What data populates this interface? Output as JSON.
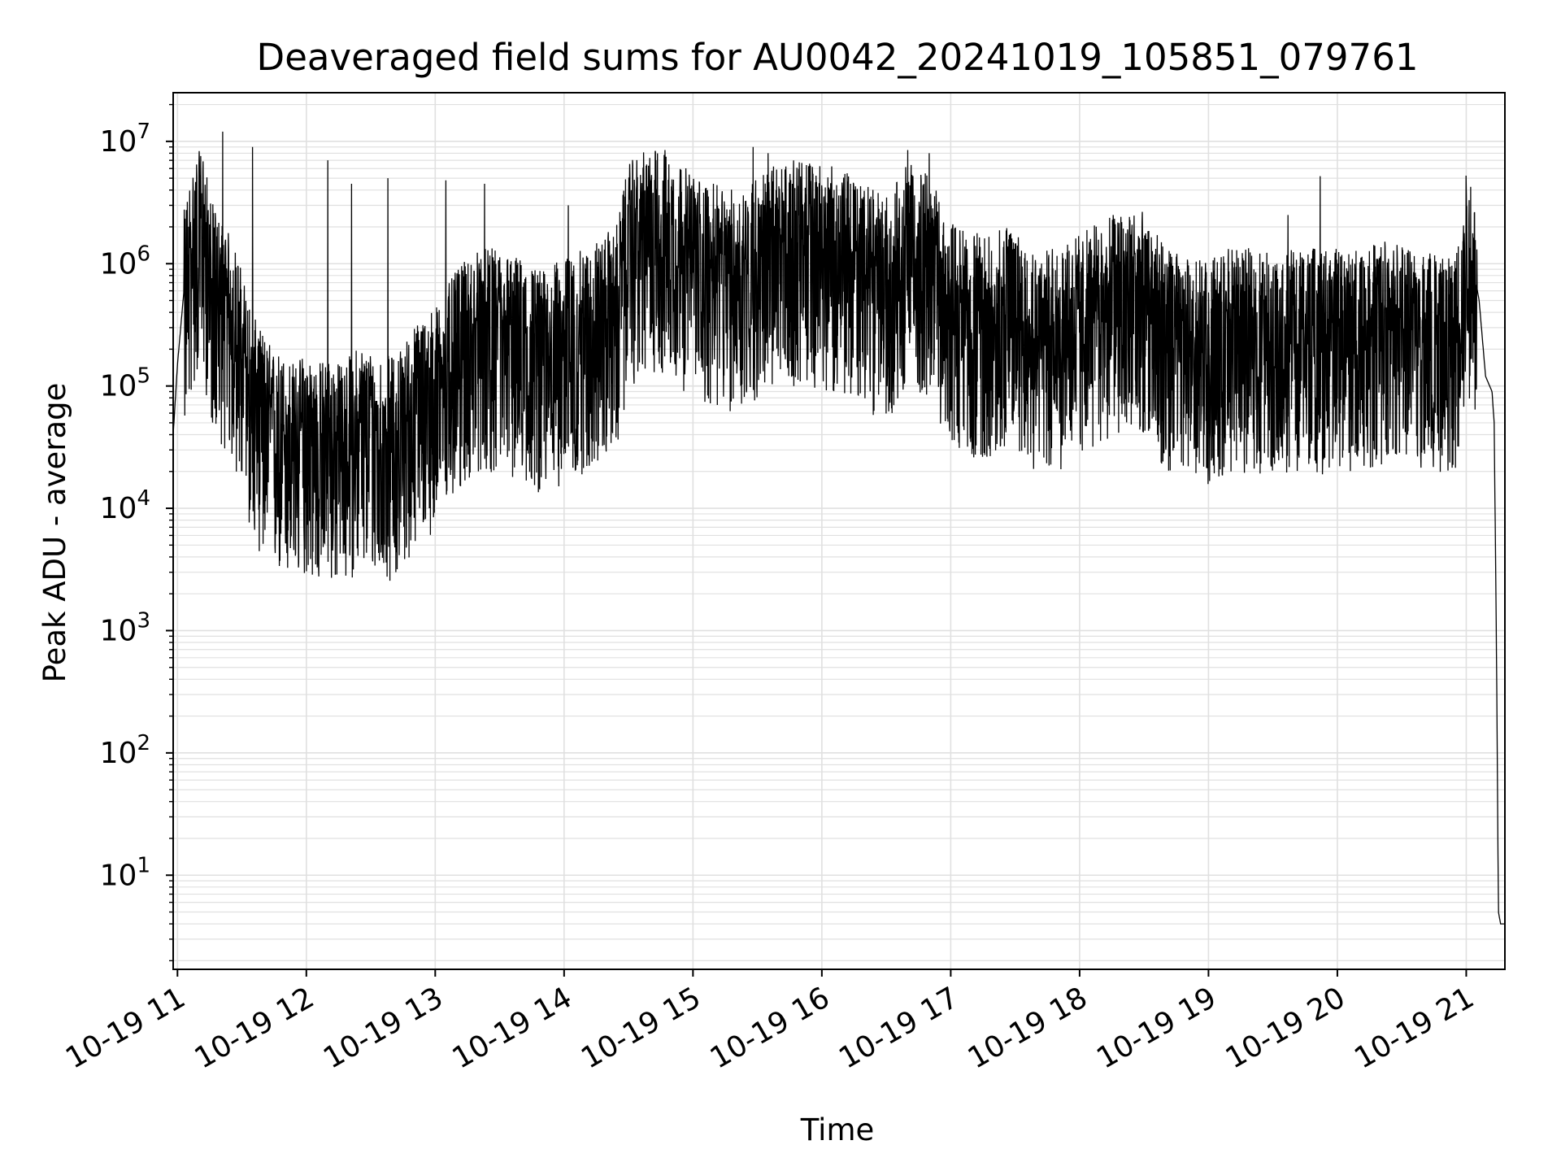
{
  "chart_data": {
    "type": "line",
    "title": "Deaveraged field sums for AU0042_20241019_105851_079761",
    "xlabel": "Time",
    "ylabel": "Peak ADU - average",
    "yscale": "log",
    "ylim": [
      1.7,
      25000000
    ],
    "xlim": [
      "2024-10-19 10:58",
      "2024-10-19 21:18"
    ],
    "grid": true,
    "line_color": "#000000",
    "grid_color": "#e0e0e0",
    "x_ticks": [
      "10-19 11",
      "10-19 12",
      "10-19 13",
      "10-19 14",
      "10-19 15",
      "10-19 16",
      "10-19 17",
      "10-19 18",
      "10-19 19",
      "10-19 20",
      "10-19 21"
    ],
    "x_tick_values": [
      "2024-10-19 11:00",
      "2024-10-19 12:00",
      "2024-10-19 13:00",
      "2024-10-19 14:00",
      "2024-10-19 15:00",
      "2024-10-19 16:00",
      "2024-10-19 17:00",
      "2024-10-19 18:00",
      "2024-10-19 19:00",
      "2024-10-19 20:00",
      "2024-10-19 21:00"
    ],
    "y_ticks": [
      {
        "base": "10",
        "exp": "1",
        "value": 10
      },
      {
        "base": "10",
        "exp": "2",
        "value": 100
      },
      {
        "base": "10",
        "exp": "3",
        "value": 1000
      },
      {
        "base": "10",
        "exp": "4",
        "value": 10000
      },
      {
        "base": "10",
        "exp": "5",
        "value": 100000
      },
      {
        "base": "10",
        "exp": "6",
        "value": 1000000
      },
      {
        "base": "10",
        "exp": "7",
        "value": 10000000
      }
    ],
    "series": [
      {
        "x": [
          "2024-10-19 10:58",
          "2024-10-19 11:00",
          "2024-10-19 11:03",
          "2024-10-19 11:06",
          "2024-10-19 11:09",
          "2024-10-19 11:12",
          "2024-10-19 11:15",
          "2024-10-19 11:18",
          "2024-10-19 11:21",
          "2024-10-19 11:24",
          "2024-10-19 11:27",
          "2024-10-19 11:30",
          "2024-10-19 11:33",
          "2024-10-19 11:36",
          "2024-10-19 11:40",
          "2024-10-19 11:45",
          "2024-10-19 11:50",
          "2024-10-19 11:55",
          "2024-10-19 12:00",
          "2024-10-19 12:05",
          "2024-10-19 12:10",
          "2024-10-19 12:15",
          "2024-10-19 12:20",
          "2024-10-19 12:25",
          "2024-10-19 12:30",
          "2024-10-19 12:35",
          "2024-10-19 12:40",
          "2024-10-19 12:45",
          "2024-10-19 12:50",
          "2024-10-19 12:55",
          "2024-10-19 13:00",
          "2024-10-19 13:10",
          "2024-10-19 13:20",
          "2024-10-19 13:30",
          "2024-10-19 13:40",
          "2024-10-19 13:50",
          "2024-10-19 14:00",
          "2024-10-19 14:10",
          "2024-10-19 14:20",
          "2024-10-19 14:25",
          "2024-10-19 14:30",
          "2024-10-19 14:40",
          "2024-10-19 14:50",
          "2024-10-19 15:00",
          "2024-10-19 15:10",
          "2024-10-19 15:20",
          "2024-10-19 15:30",
          "2024-10-19 15:40",
          "2024-10-19 15:50",
          "2024-10-19 16:00",
          "2024-10-19 16:10",
          "2024-10-19 16:20",
          "2024-10-19 16:30",
          "2024-10-19 16:40",
          "2024-10-19 16:50",
          "2024-10-19 17:00",
          "2024-10-19 17:10",
          "2024-10-19 17:20",
          "2024-10-19 17:30",
          "2024-10-19 17:40",
          "2024-10-19 17:50",
          "2024-10-19 18:00",
          "2024-10-19 18:10",
          "2024-10-19 18:20",
          "2024-10-19 18:30",
          "2024-10-19 18:40",
          "2024-10-19 18:50",
          "2024-10-19 19:00",
          "2024-10-19 19:10",
          "2024-10-19 19:20",
          "2024-10-19 19:30",
          "2024-10-19 19:40",
          "2024-10-19 19:50",
          "2024-10-19 20:00",
          "2024-10-19 20:10",
          "2024-10-19 20:20",
          "2024-10-19 20:30",
          "2024-10-19 20:40",
          "2024-10-19 20:50",
          "2024-10-19 20:55",
          "2024-10-19 21:00",
          "2024-10-19 21:03",
          "2024-10-19 21:06",
          "2024-10-19 21:09",
          "2024-10-19 21:12",
          "2024-10-19 21:13",
          "2024-10-19 21:14",
          "2024-10-19 21:15",
          "2024-10-19 21:16",
          "2024-10-19 21:18"
        ],
        "y": [
          40000,
          150000,
          600000,
          1200000,
          1800000,
          2000000,
          800000,
          600000,
          500000,
          400000,
          300000,
          200000,
          120000,
          80000,
          60000,
          45000,
          40000,
          35000,
          45000,
          35000,
          40000,
          35000,
          40000,
          50000,
          45000,
          40000,
          40000,
          50000,
          70000,
          90000,
          100000,
          200000,
          300000,
          300000,
          250000,
          200000,
          250000,
          300000,
          400000,
          500000,
          1500000,
          2000000,
          1800000,
          1200000,
          1000000,
          900000,
          1200000,
          1500000,
          1600000,
          1500000,
          1300000,
          1000000,
          800000,
          1500000,
          1200000,
          500000,
          400000,
          400000,
          500000,
          300000,
          300000,
          400000,
          500000,
          700000,
          600000,
          300000,
          250000,
          250000,
          300000,
          300000,
          300000,
          300000,
          300000,
          300000,
          300000,
          350000,
          350000,
          300000,
          300000,
          300000,
          1500000,
          1000000,
          500000,
          120000,
          90000,
          50000,
          1000,
          5,
          4,
          4
        ],
        "spikes": [
          {
            "x": "2024-10-19 11:21",
            "y": 12000000
          },
          {
            "x": "2024-10-19 11:35",
            "y": 9000000
          },
          {
            "x": "2024-10-19 12:10",
            "y": 7000000
          },
          {
            "x": "2024-10-19 12:21",
            "y": 4500000
          },
          {
            "x": "2024-10-19 12:38",
            "y": 5000000
          },
          {
            "x": "2024-10-19 13:05",
            "y": 4800000
          },
          {
            "x": "2024-10-19 13:23",
            "y": 4500000
          },
          {
            "x": "2024-10-19 14:02",
            "y": 3000000
          },
          {
            "x": "2024-10-19 14:47",
            "y": 8500000
          },
          {
            "x": "2024-10-19 15:28",
            "y": 9000000
          },
          {
            "x": "2024-10-19 15:35",
            "y": 8000000
          },
          {
            "x": "2024-10-19 16:40",
            "y": 8500000
          },
          {
            "x": "2024-10-19 16:50",
            "y": 8000000
          },
          {
            "x": "2024-10-19 19:37",
            "y": 2500000
          },
          {
            "x": "2024-10-19 19:52",
            "y": 5200000
          },
          {
            "x": "2024-10-19 21:00",
            "y": 3700000
          }
        ]
      }
    ]
  }
}
